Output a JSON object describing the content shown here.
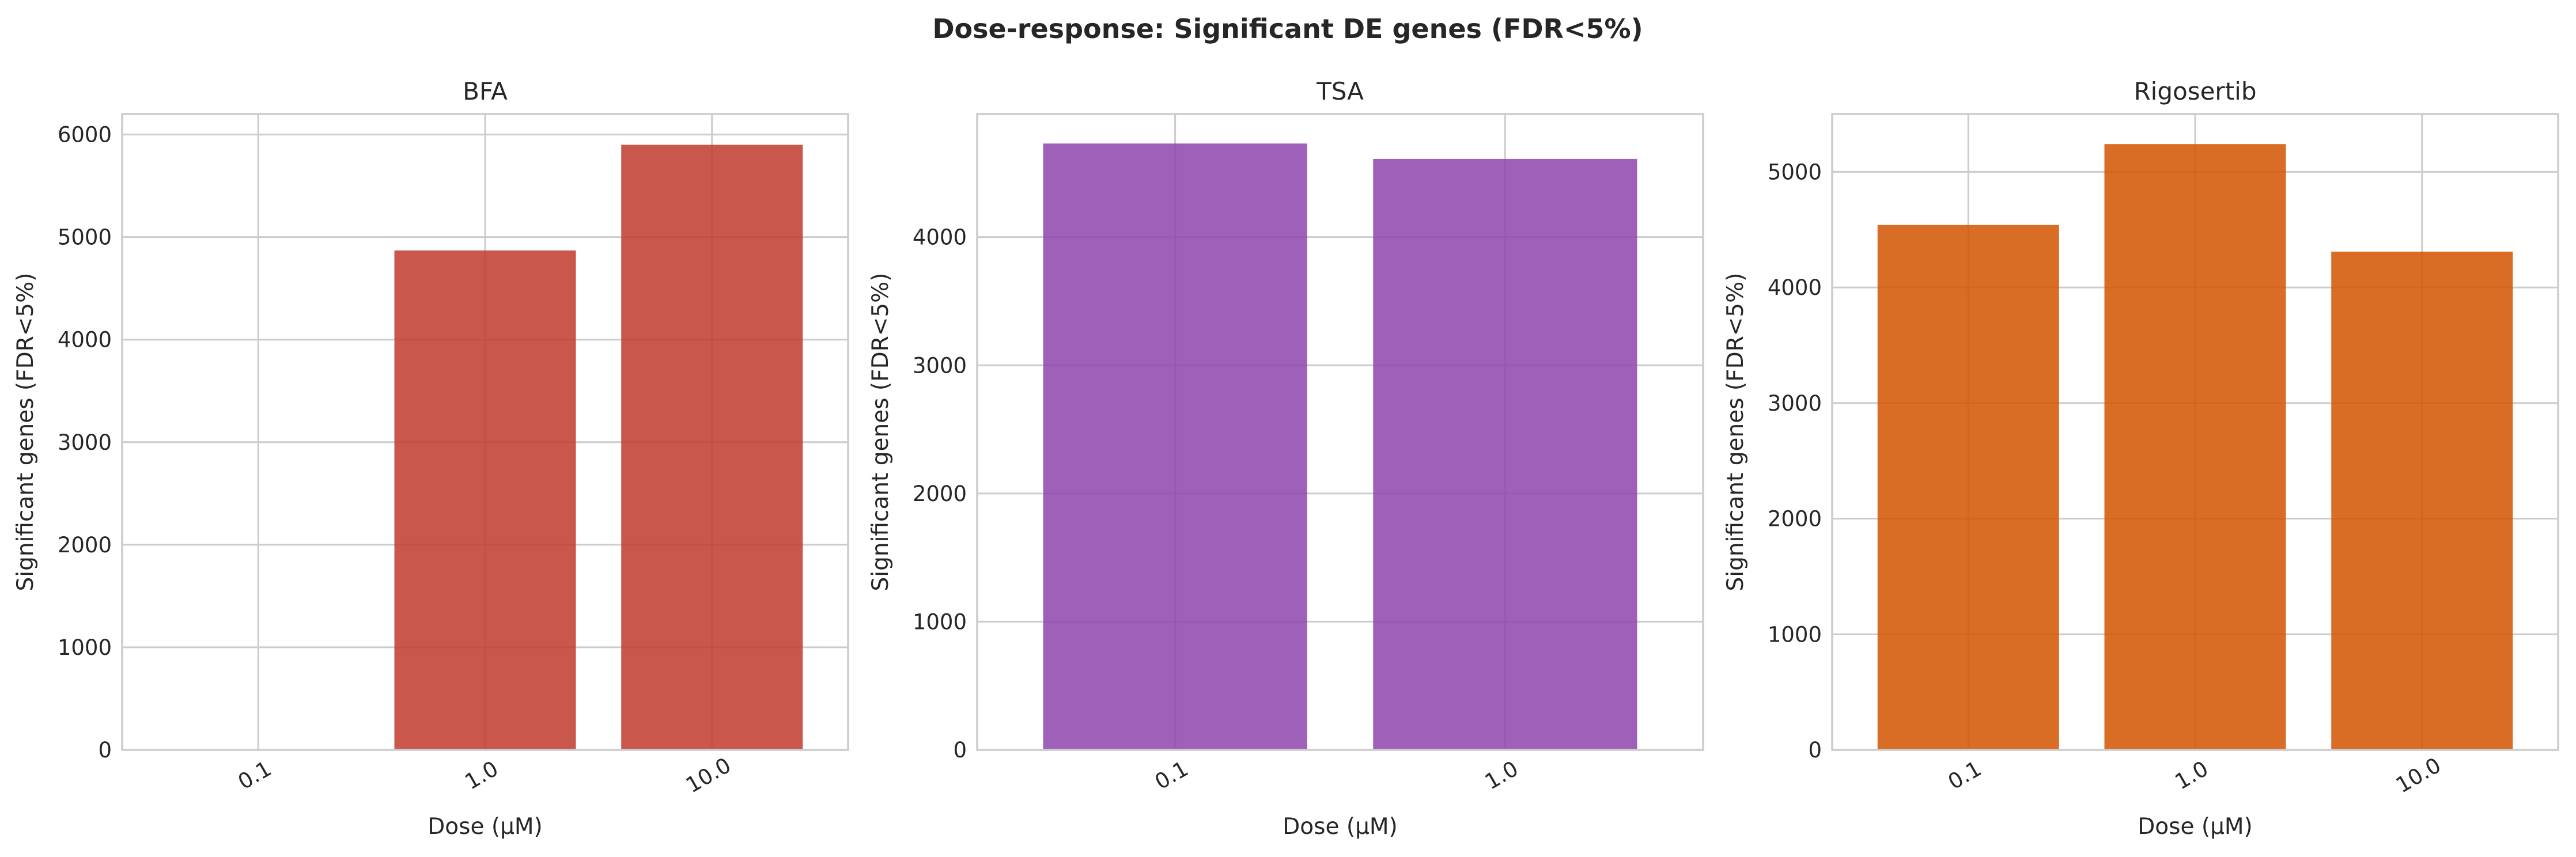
{
  "figure": {
    "suptitle": "Dose-response: Significant DE genes (FDR<5%)"
  },
  "chart_data": [
    {
      "type": "bar",
      "title": "BFA",
      "xlabel": "Dose (μM)",
      "ylabel": "Significant genes (FDR<5%)",
      "categories": [
        "0.1",
        "1.0",
        "10.0"
      ],
      "values": [
        0,
        4870,
        5900
      ],
      "ylim": [
        0,
        6200
      ],
      "yticks": [
        0,
        1000,
        2000,
        3000,
        4000,
        5000,
        6000
      ],
      "color": "#c0392b",
      "grid": true
    },
    {
      "type": "bar",
      "title": "TSA",
      "xlabel": "Dose (μM)",
      "ylabel": "Significant genes (FDR<5%)",
      "categories": [
        "0.1",
        "1.0"
      ],
      "values": [
        4730,
        4610
      ],
      "ylim": [
        0,
        4960
      ],
      "yticks": [
        0,
        1000,
        2000,
        3000,
        4000
      ],
      "color": "#8e44ad",
      "grid": true
    },
    {
      "type": "bar",
      "title": "Rigosertib",
      "xlabel": "Dose (μM)",
      "ylabel": "Significant genes (FDR<5%)",
      "categories": [
        "0.1",
        "1.0",
        "10.0"
      ],
      "values": [
        4540,
        5240,
        4310
      ],
      "ylim": [
        0,
        5500
      ],
      "yticks": [
        0,
        1000,
        2000,
        3000,
        4000,
        5000
      ],
      "color": "#d35400",
      "grid": true
    }
  ]
}
